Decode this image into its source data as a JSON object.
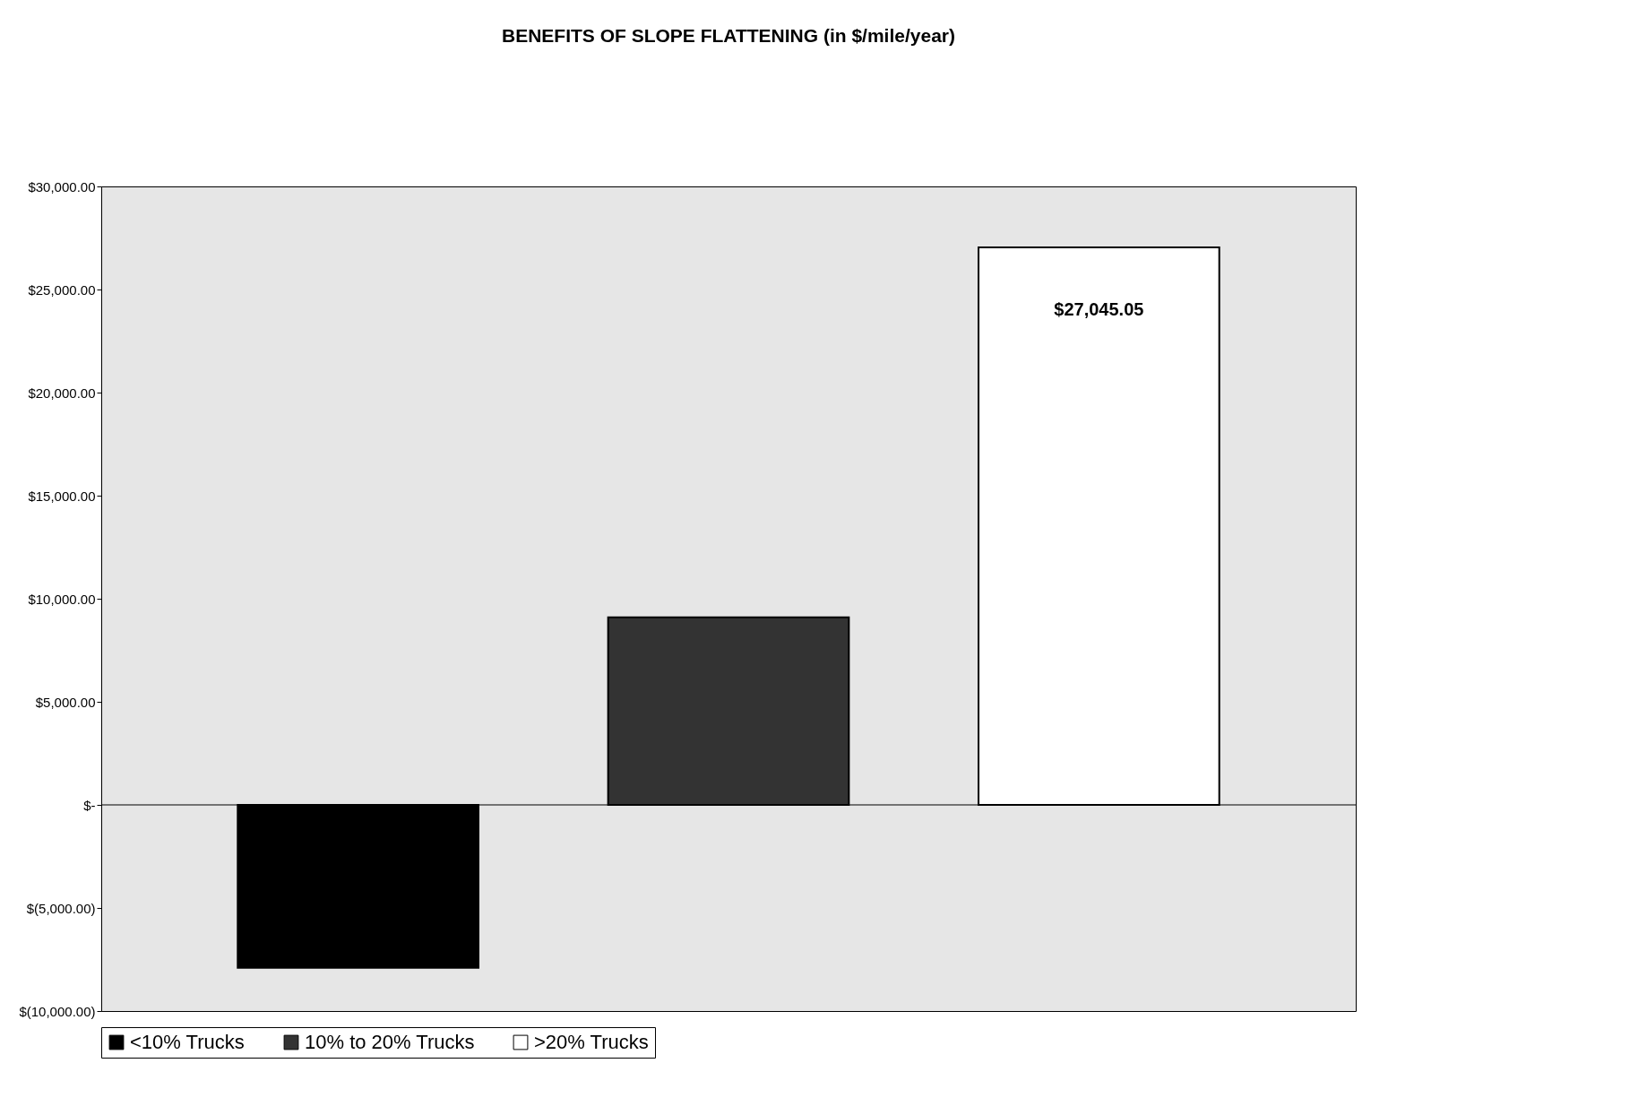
{
  "chart_data": {
    "type": "bar",
    "title": "BENEFITS OF SLOPE FLATTENING (in $/mile/year)",
    "categories": [
      null
    ],
    "series": [
      {
        "name": "<10% Trucks",
        "color": "#000000",
        "values": [
          -7900
        ]
      },
      {
        "name": "10% to 20% Trucks",
        "color": "#333333",
        "values": [
          9100
        ]
      },
      {
        "name": ">20% Trucks",
        "color": "#ffffff",
        "values": [
          27045.05
        ],
        "value_labels": [
          "$27,045.05"
        ]
      }
    ],
    "ylim": [
      -10000,
      30000
    ],
    "yticks": [
      {
        "value": -10000,
        "label": "$(10,000.00)"
      },
      {
        "value": -5000,
        "label": "$(5,000.00)"
      },
      {
        "value": 0,
        "label": "$-"
      },
      {
        "value": 5000,
        "label": "$5,000.00"
      },
      {
        "value": 10000,
        "label": "$10,000.00"
      },
      {
        "value": 15000,
        "label": "$15,000.00"
      },
      {
        "value": 20000,
        "label": "$20,000.00"
      },
      {
        "value": 25000,
        "label": "$25,000.00"
      },
      {
        "value": 30000,
        "label": "$30,000.00"
      }
    ],
    "ref_lines": [
      {
        "axis": "y",
        "value": 0
      }
    ],
    "grid": false,
    "legend": "bottom"
  }
}
